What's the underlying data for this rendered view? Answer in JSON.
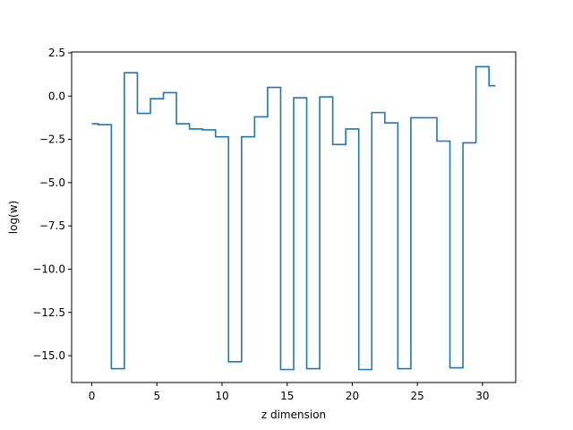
{
  "chart_data": {
    "type": "line",
    "drawstyle": "steps-mid",
    "title": "",
    "xlabel": "z dimension",
    "ylabel": "log(w)",
    "xlim": [
      -1.55,
      32.55
    ],
    "ylim": [
      -16.55,
      2.55
    ],
    "xticks": [
      0,
      5,
      10,
      15,
      20,
      25,
      30
    ],
    "xtick_labels": [
      "0",
      "5",
      "10",
      "15",
      "20",
      "25",
      "30"
    ],
    "yticks": [
      2.5,
      0,
      -2.5,
      -5,
      -7.5,
      -10,
      -12.5,
      -15
    ],
    "ytick_labels": [
      "2.5",
      "0.0",
      "−2.5",
      "−5.0",
      "−7.5",
      "−10.0",
      "−12.5",
      "−15.0"
    ],
    "grid": false,
    "legend": "none",
    "series": [
      {
        "color": "#1f77b4",
        "x": [
          0,
          1,
          2,
          3,
          4,
          5,
          6,
          7,
          8,
          9,
          10,
          11,
          12,
          13,
          14,
          15,
          16,
          17,
          18,
          19,
          20,
          21,
          22,
          23,
          24,
          25,
          26,
          27,
          28,
          29,
          30,
          31
        ],
        "y": [
          -1.6,
          -1.65,
          -15.75,
          1.35,
          -1.0,
          -0.15,
          0.2,
          -1.6,
          -1.9,
          -1.95,
          -2.35,
          -15.35,
          -2.35,
          -1.2,
          0.5,
          -15.8,
          -0.1,
          -15.75,
          -0.05,
          -2.8,
          -1.9,
          -15.8,
          -0.95,
          -1.55,
          -15.75,
          -1.25,
          -1.25,
          -2.6,
          -15.7,
          -2.7,
          1.7,
          0.6
        ]
      }
    ]
  }
}
